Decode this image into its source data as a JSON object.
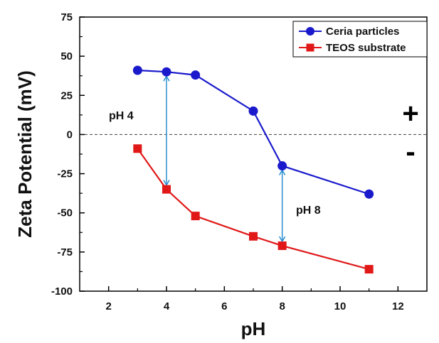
{
  "chart_data": {
    "type": "line",
    "title": "",
    "xlabel": "pH",
    "ylabel": "Zeta Potential (mV)",
    "xlim": [
      1,
      13
    ],
    "ylim": [
      -100,
      75
    ],
    "xticks": [
      2,
      4,
      6,
      8,
      10,
      12
    ],
    "yticks": [
      75,
      50,
      25,
      0,
      -25,
      -50,
      -75,
      -100
    ],
    "grid": false,
    "legend_position": "top-right",
    "reference_line": {
      "y": 0,
      "style": "dashed"
    },
    "series": [
      {
        "name": "Ceria particles",
        "color": "#1a1acc",
        "marker": "circle",
        "x": [
          3,
          4,
          5,
          7,
          8,
          11
        ],
        "y": [
          41,
          40,
          38,
          15,
          -20,
          -38
        ]
      },
      {
        "name": "TEOS substrate",
        "color": "#e01818",
        "marker": "square",
        "x": [
          3,
          4,
          5,
          7,
          8,
          11
        ],
        "y": [
          -9,
          -35,
          -52,
          -65,
          -71,
          -86
        ]
      }
    ],
    "annotations": [
      {
        "text": "pH 4",
        "arrow_x": 4,
        "y_from": 40,
        "y_to": -35
      },
      {
        "text": "pH 8",
        "arrow_x": 8,
        "y_from": -20,
        "y_to": -71
      }
    ],
    "sign_labels": {
      "positive": "+",
      "negative": "-"
    },
    "arrow_color": "#2a8fd0"
  }
}
